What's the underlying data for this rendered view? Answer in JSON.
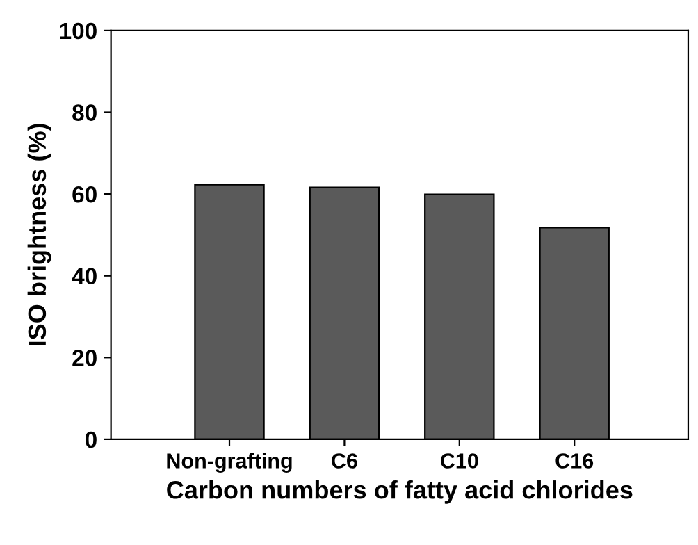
{
  "chart_data": {
    "type": "bar",
    "xlabel": "Carbon numbers of fatty acid chlorides",
    "ylabel": "ISO brightness (%)",
    "categories": [
      "Non-grafting",
      "C6",
      "C10",
      "C16"
    ],
    "values": [
      62.3,
      61.6,
      59.9,
      51.8
    ],
    "color": "#5a5a5a",
    "ylim": [
      0,
      100
    ],
    "yticks": [
      0,
      20,
      40,
      60,
      80,
      100
    ],
    "grid": false,
    "legend": false
  }
}
